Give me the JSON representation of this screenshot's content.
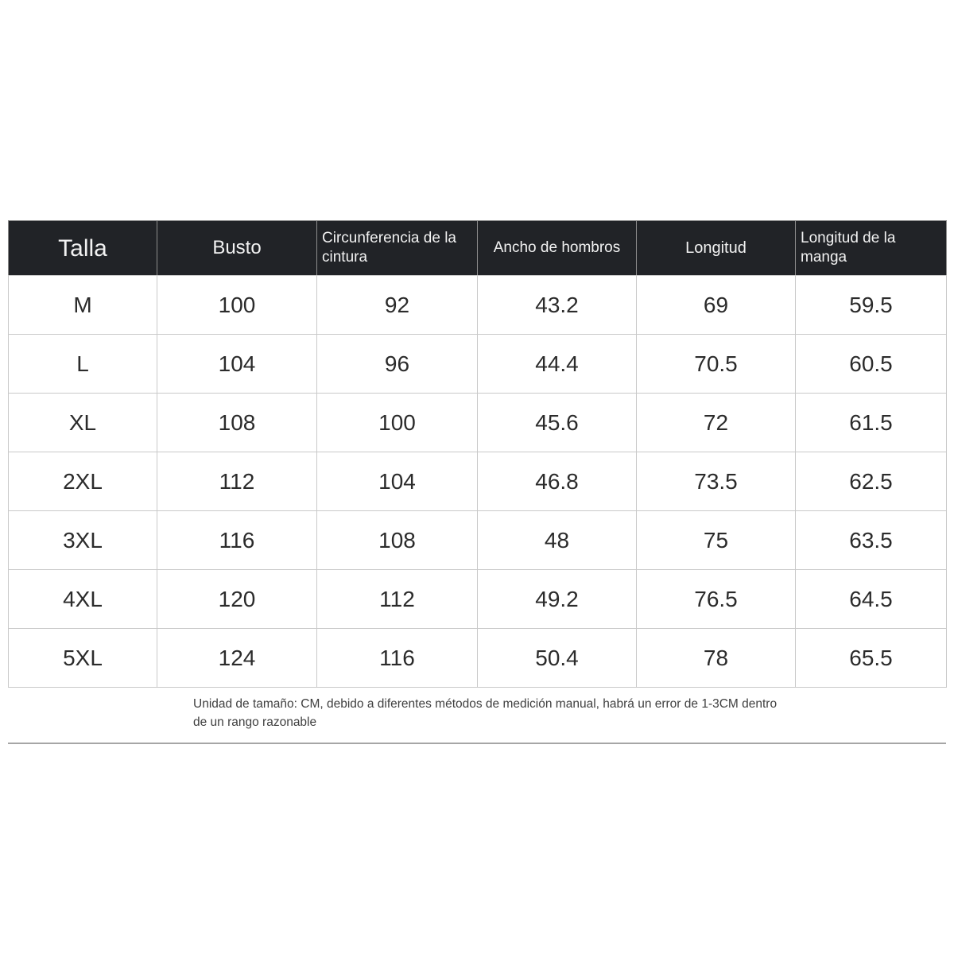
{
  "colors": {
    "page_background": "#ffffff",
    "header_background": "#212327",
    "header_text": "#f2f2f2",
    "body_border": "#c9c9c9",
    "header_border": "#8d8d8d",
    "body_text": "#2b2b2b",
    "footnote_text": "#3f3f3f",
    "divider": "#a6a6a6"
  },
  "table": {
    "columns": [
      "Talla",
      "Busto",
      "Circunferencia de la cintura",
      "Ancho de hombros",
      "Longitud",
      "Longitud de la manga"
    ],
    "rows": [
      [
        "M",
        "100",
        "92",
        "43.2",
        "69",
        "59.5"
      ],
      [
        "L",
        "104",
        "96",
        "44.4",
        "70.5",
        "60.5"
      ],
      [
        "XL",
        "108",
        "100",
        "45.6",
        "72",
        "61.5"
      ],
      [
        "2XL",
        "112",
        "104",
        "46.8",
        "73.5",
        "62.5"
      ],
      [
        "3XL",
        "116",
        "108",
        "48",
        "75",
        "63.5"
      ],
      [
        "4XL",
        "120",
        "112",
        "49.2",
        "76.5",
        "64.5"
      ],
      [
        "5XL",
        "124",
        "116",
        "50.4",
        "78",
        "65.5"
      ]
    ]
  },
  "footnote": {
    "line1": "Unidad de tamaño: CM, debido a diferentes métodos de medición manual, habrá un error de 1-3CM dentro",
    "line2": "de un rango razonable"
  }
}
